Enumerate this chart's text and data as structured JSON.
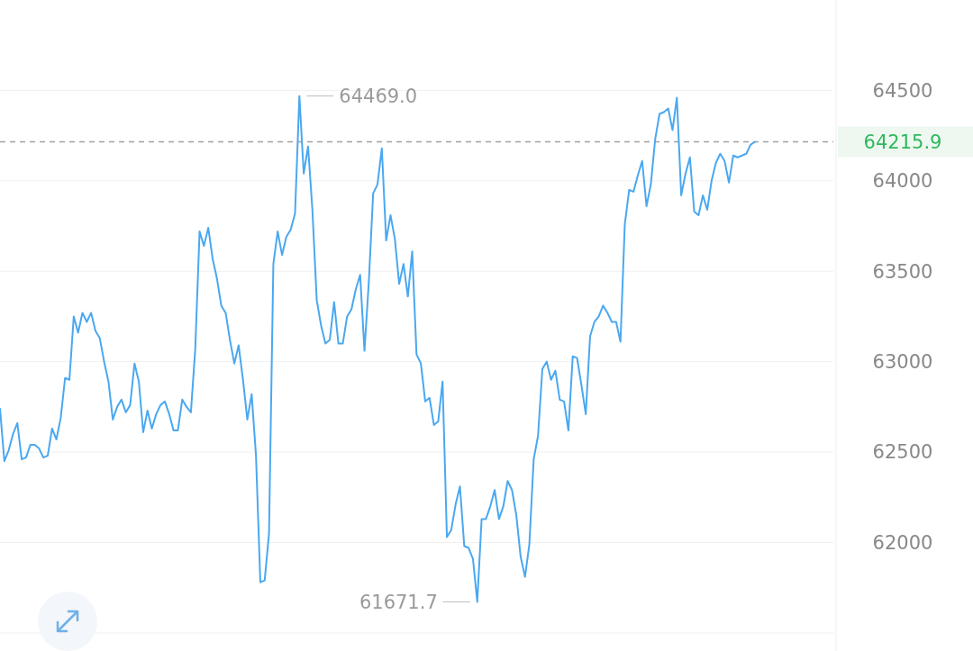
{
  "chart_data": {
    "type": "line",
    "categories": [
      null,
      null,
      null,
      null,
      null,
      null,
      null,
      null,
      null,
      null,
      null,
      null,
      null,
      null,
      null,
      null,
      null,
      null,
      null,
      null,
      null,
      null,
      null,
      null,
      null,
      null,
      null,
      null,
      null,
      null,
      null,
      null,
      null,
      null,
      null,
      null,
      null,
      null,
      null,
      null,
      null,
      null,
      null,
      null,
      null,
      null,
      null,
      null,
      null,
      null,
      null,
      null,
      null,
      null,
      null,
      null,
      null,
      null,
      null,
      null,
      null,
      null,
      null,
      null,
      null,
      null,
      null,
      null,
      null,
      null,
      null,
      null,
      null,
      null,
      null,
      null,
      null,
      null,
      null,
      null,
      null,
      null,
      null,
      null,
      null,
      null,
      null,
      null,
      null,
      null,
      null,
      null,
      null,
      null,
      null,
      null,
      null,
      null,
      null,
      null,
      null,
      null,
      null,
      null,
      null,
      null,
      null,
      null,
      null,
      null,
      null,
      null,
      null,
      null,
      null,
      null,
      null,
      null,
      null,
      null,
      null,
      null,
      null,
      null,
      null,
      null,
      null,
      null,
      null,
      null,
      null,
      null,
      null,
      null,
      null,
      null,
      null,
      null,
      null,
      null,
      null,
      null,
      null,
      null,
      null,
      null,
      null,
      null,
      null,
      null,
      null,
      null,
      null,
      null,
      null,
      null,
      null,
      null,
      null,
      null,
      null,
      null,
      null,
      null,
      null,
      null,
      null,
      null,
      null,
      null,
      null,
      null,
      null,
      null,
      null
    ],
    "series": [
      {
        "color": "#4aa8f0",
        "values": [
          62740,
          62450,
          62510,
          62600,
          62660,
          62460,
          62470,
          62540,
          62540,
          62520,
          62470,
          62480,
          62630,
          62570,
          62690,
          62910,
          62900,
          63250,
          63160,
          63270,
          63220,
          63270,
          63170,
          63130,
          63000,
          62890,
          62680,
          62750,
          62790,
          62720,
          62760,
          62990,
          62890,
          62610,
          62730,
          62630,
          62710,
          62760,
          62780,
          62710,
          62620,
          62620,
          62790,
          62750,
          62720,
          63070,
          63720,
          63640,
          63740,
          63570,
          63460,
          63310,
          63270,
          63120,
          62990,
          63090,
          62900,
          62680,
          62820,
          62480,
          61780,
          61790,
          62050,
          63540,
          63720,
          63590,
          63690,
          63730,
          63820,
          64469.0,
          64040,
          64190,
          63840,
          63340,
          63200,
          63100,
          63120,
          63330,
          63100,
          63100,
          63250,
          63290,
          63400,
          63480,
          63060,
          63440,
          63930,
          63980,
          64180,
          63670,
          63810,
          63680,
          63430,
          63540,
          63360,
          63610,
          63040,
          62990,
          62780,
          62800,
          62650,
          62670,
          62890,
          62030,
          62070,
          62210,
          62310,
          61980,
          61970,
          61910,
          61671.7,
          62130,
          62130,
          62200,
          62290,
          62130,
          62200,
          62340,
          62290,
          62150,
          61920,
          61810,
          61990,
          62460,
          62590,
          62960,
          63000,
          62900,
          62950,
          62790,
          62780,
          62620,
          63030,
          63020,
          62870,
          62710,
          63140,
          63220,
          63250,
          63310,
          63270,
          63220,
          63220,
          63110,
          63760,
          63950,
          63940,
          64030,
          64110,
          63860,
          63980,
          64230,
          64370,
          64380,
          64400,
          64280,
          64460,
          63920,
          64040,
          64130,
          63830,
          63810,
          63920,
          63840,
          64000,
          64100,
          64150,
          64110,
          63990,
          64140,
          64130,
          64140,
          64150,
          64200,
          64215.9
        ]
      }
    ],
    "ylim": [
      61400,
      65000
    ],
    "yticks": [
      {
        "value": 61500,
        "label": null
      },
      62000,
      62500,
      63000,
      63500,
      64000,
      64500
    ],
    "grid": "y",
    "tick_labels": "y",
    "ref_lines": [
      {
        "axis": "y",
        "value": 64215.9,
        "label": "64215.9",
        "color": "#a0a0a0",
        "line_style": "dashed"
      }
    ],
    "annotations": [
      "64469.0",
      "61671.7"
    ]
  }
}
